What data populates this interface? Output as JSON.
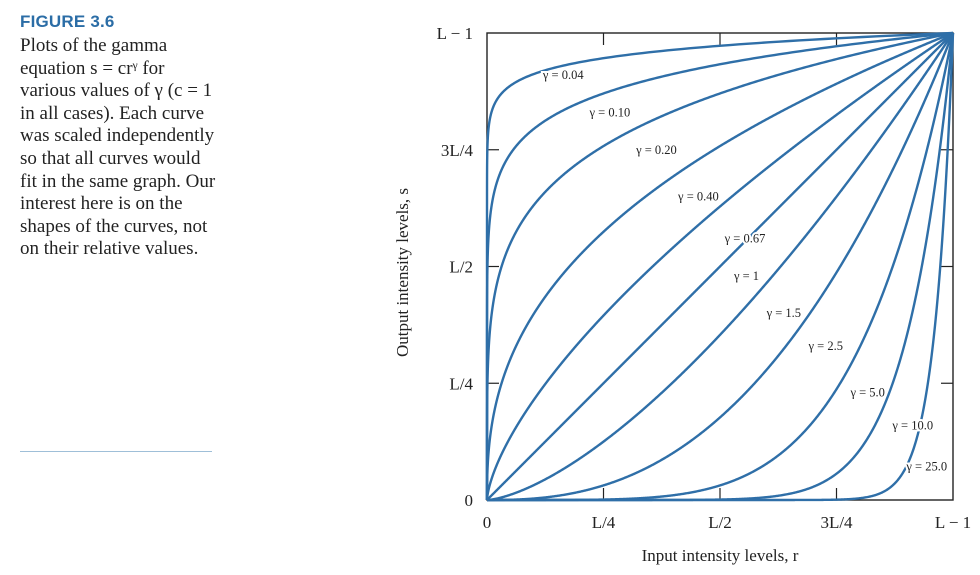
{
  "figure": {
    "label": "FIGURE 3.6",
    "caption": "Plots of the gamma equation s = crᵞ for various values of γ (c = 1 in all cases). Each curve was scaled independently so that all curves would fit in the same graph. Our interest here is on the shapes of the curves, not on their relative values."
  },
  "colors": {
    "curve": "#2f6fa8",
    "axis": "#222222",
    "figure_label": "#2b6da6",
    "rule": "#9fbfd8"
  },
  "chart_data": {
    "type": "line",
    "xlabel": "Input intensity levels, r",
    "ylabel": "Output intensity levels, s",
    "x_ticks": [
      "0",
      "L/4",
      "L/2",
      "3L/4",
      "L − 1"
    ],
    "y_ticks": [
      "0",
      "L/4",
      "L/2",
      "3L/4",
      "L − 1"
    ],
    "xlim": [
      0,
      1
    ],
    "ylim": [
      0,
      1
    ],
    "grid": false,
    "function": "s = r^γ",
    "series": [
      {
        "name": "γ = 0.04",
        "gamma": 0.04
      },
      {
        "name": "γ = 0.10",
        "gamma": 0.1
      },
      {
        "name": "γ = 0.20",
        "gamma": 0.2
      },
      {
        "name": "γ = 0.40",
        "gamma": 0.4
      },
      {
        "name": "γ = 0.67",
        "gamma": 0.67
      },
      {
        "name": "γ = 1",
        "gamma": 1
      },
      {
        "name": "γ = 1.5",
        "gamma": 1.5
      },
      {
        "name": "γ = 2.5",
        "gamma": 2.5
      },
      {
        "name": "γ = 5.0",
        "gamma": 5.0
      },
      {
        "name": "γ = 10.0",
        "gamma": 10.0
      },
      {
        "name": "γ = 25.0",
        "gamma": 25.0
      }
    ]
  }
}
